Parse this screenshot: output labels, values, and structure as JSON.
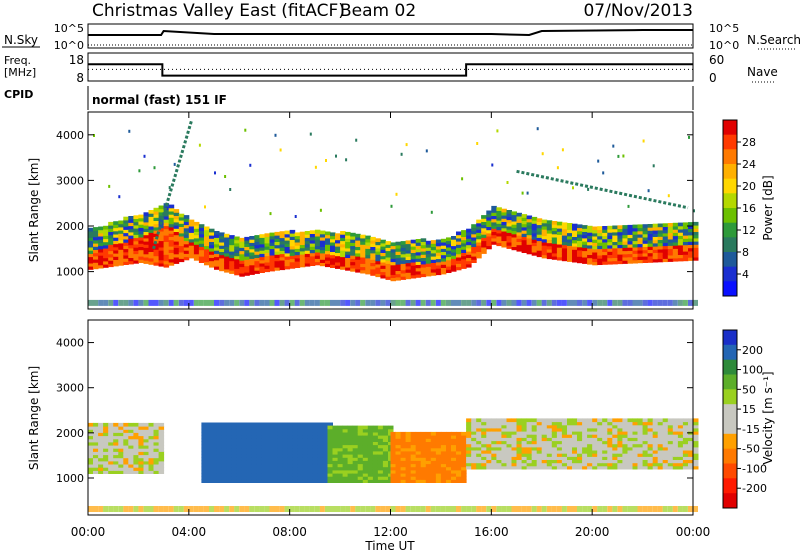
{
  "header": {
    "title": "Christmas Valley East (fitACF)",
    "beam": "Beam 02",
    "date": "07/Nov/2013"
  },
  "scan_panels": {
    "nsky_label": "N.Sky",
    "nsearch_label": "N.Search",
    "nsky_ticks": [
      "10^5",
      "10^0"
    ],
    "nsearch_ticks": [
      "10^5",
      "10^0"
    ],
    "freq_label": [
      "Freq.",
      "[MHz]"
    ],
    "freq_ticks": [
      "18",
      "8"
    ],
    "nave_label": "Nave",
    "nave_ticks": [
      "60",
      "0"
    ],
    "cpid_label": "CPID",
    "cpid_text": "normal (fast) 151 IF"
  },
  "colorbars": {
    "power": {
      "label": "Power [dB]",
      "ticks": [
        "28",
        "24",
        "20",
        "16",
        "12",
        "8",
        "4"
      ],
      "colors": [
        "#e00000",
        "#ff3a00",
        "#ff7a00",
        "#ffb000",
        "#ffd700",
        "#b4d800",
        "#6cc000",
        "#2e9a3a",
        "#2a7a5e",
        "#1e5a9a",
        "#1a2fd0",
        "#0a10ff"
      ]
    },
    "velocity": {
      "label": "Velocity [m s⁻¹]",
      "ticks": [
        "200",
        "100",
        "50",
        "15",
        "-15",
        "-50",
        "-100",
        "-200"
      ],
      "colors": [
        "#1a2fc8",
        "#2466b4",
        "#2e8a3a",
        "#5cae2a",
        "#9ad020",
        "#c8c8c0",
        "#c8c8c0",
        "#ffa000",
        "#ff7a00",
        "#ff4a00",
        "#ff1a00",
        "#e00000"
      ]
    }
  },
  "axes": {
    "ylabel": "Slant Range [km]",
    "yticks": [
      "4000",
      "3000",
      "2000",
      "1000"
    ],
    "xlabel": "Time UT",
    "xticks": [
      "00:00",
      "04:00",
      "08:00",
      "12:00",
      "16:00",
      "20:00",
      "00:00"
    ]
  },
  "chart_data": [
    {
      "type": "line",
      "title": "N.Sky / N.Search",
      "xlim": [
        0,
        24
      ],
      "series": [
        {
          "name": "N.Sky",
          "x": [
            0,
            2.9,
            3.0,
            5.0,
            8.0,
            12.0,
            16.0,
            17.5,
            18.0,
            22.0,
            24
          ],
          "y": [
            0.55,
            0.55,
            0.75,
            0.6,
            0.6,
            0.6,
            0.6,
            0.55,
            0.75,
            0.8,
            0.8
          ]
        },
        {
          "name": "N.Search",
          "x": [
            0,
            24
          ],
          "y": [
            0.05,
            0.05
          ]
        }
      ]
    },
    {
      "type": "line",
      "title": "Freq / Nave",
      "xlim": [
        0,
        24
      ],
      "series": [
        {
          "name": "Freq. [MHz]",
          "x": [
            0,
            2.95,
            2.95,
            15.0,
            15.0,
            24
          ],
          "y": [
            14.0,
            14.0,
            9.9,
            9.9,
            14.0,
            14.0
          ]
        },
        {
          "name": "Nave",
          "x": [
            0,
            24
          ],
          "y": [
            25,
            25
          ]
        }
      ],
      "ylim_left": [
        8,
        18
      ],
      "ylim_right": [
        0,
        60
      ]
    },
    {
      "type": "heatmap",
      "title": "Power [dB]",
      "xlabel": "Time UT",
      "ylabel": "Slant Range [km]",
      "xlim": [
        0,
        24
      ],
      "ylim": [
        180,
        4500
      ],
      "backscatter_lower_edge_km": {
        "x": [
          0,
          2,
          3,
          4,
          5,
          6,
          7,
          9,
          11,
          12,
          14,
          15,
          16,
          18,
          20,
          22,
          24
        ],
        "y": [
          1050,
          1200,
          1100,
          1300,
          1050,
          900,
          1000,
          1150,
          950,
          800,
          950,
          1100,
          1600,
          1300,
          1150,
          1200,
          1250
        ]
      },
      "strong_band_km": {
        "x": [
          0,
          2,
          3,
          4,
          5,
          6,
          7,
          9,
          11,
          12,
          14,
          15,
          16,
          18,
          20,
          22,
          24
        ],
        "y": [
          1400,
          1750,
          2000,
          1600,
          1350,
          1200,
          1300,
          1400,
          1250,
          1100,
          1200,
          1400,
          1900,
          1600,
          1450,
          1500,
          1550
        ]
      },
      "scatter_edges": [
        {
          "name": "rising-streaks",
          "x": [
            2.6,
            4.1
          ],
          "y": [
            1500,
            4300
          ]
        },
        {
          "name": "descending-arc",
          "x": [
            17.0,
            23.8
          ],
          "y": [
            3200,
            2400
          ]
        }
      ],
      "power_range_db": [
        0,
        30
      ]
    },
    {
      "type": "heatmap",
      "title": "Velocity [m s-1]",
      "xlabel": "Time UT",
      "ylabel": "Slant Range [km]",
      "xlim": [
        0,
        24
      ],
      "ylim": [
        180,
        4500
      ],
      "regions": [
        {
          "name": "ground-scatter-early",
          "x": [
            0,
            3.0
          ],
          "y": [
            1100,
            2200
          ],
          "velocity": 0
        },
        {
          "name": "westward-flow",
          "x": [
            4.5,
            9.5
          ],
          "y": [
            900,
            2200
          ],
          "velocity": 80
        },
        {
          "name": "green-region",
          "x": [
            9.5,
            12.0
          ],
          "y": [
            900,
            2100
          ],
          "velocity": 40
        },
        {
          "name": "orange-region",
          "x": [
            12.0,
            14.8
          ],
          "y": [
            900,
            2000
          ],
          "velocity": -70
        },
        {
          "name": "ground-scatter-late",
          "x": [
            15.0,
            24
          ],
          "y": [
            1200,
            2300
          ],
          "velocity": 0
        }
      ],
      "velocity_range": [
        -250,
        250
      ]
    }
  ]
}
